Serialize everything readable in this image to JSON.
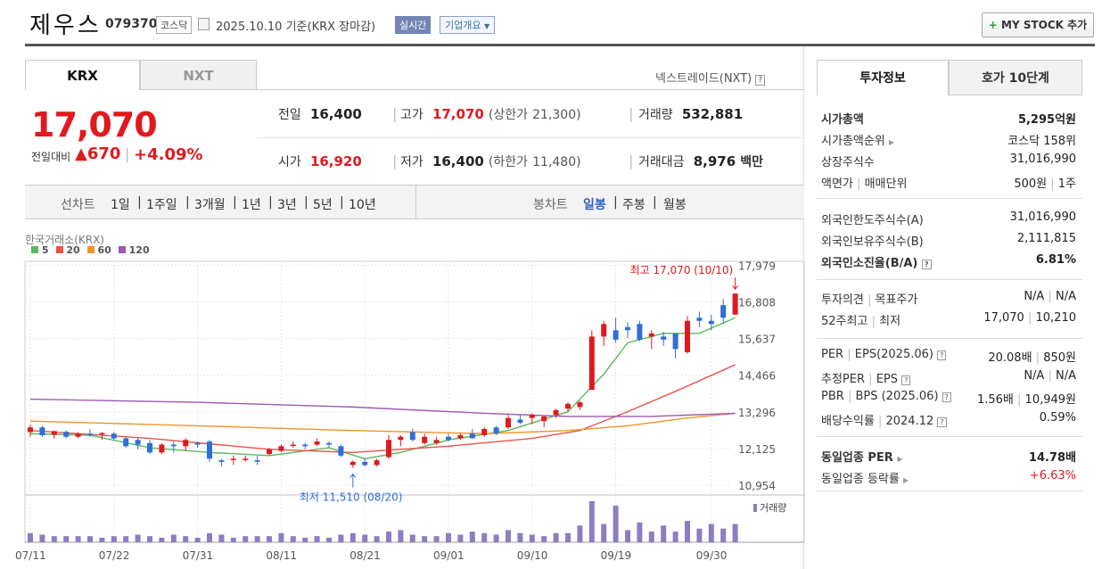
{
  "header": {
    "name": "제우스",
    "code": "079370",
    "market": "코스닥",
    "date": "2025.10.10",
    "basis": "기준(KRX 장마감)",
    "realtime": "실시간",
    "company_overview": "기업개요",
    "mystock": "MY STOCK 추가"
  },
  "tabs": {
    "krx": "KRX",
    "nxt": "NXT",
    "nxt_link": "넥스트레이드(NXT)"
  },
  "price": {
    "current": "17,070",
    "change_label": "전일대비",
    "change": "670",
    "change_pct": "+4.09%"
  },
  "quote": {
    "prev_label": "전일",
    "prev": "16,400",
    "high_label": "고가",
    "high": "17,070",
    "upper_label": "(상한가",
    "upper": "21,300)",
    "volume_label": "거래량",
    "volume": "532,881",
    "open_label": "시가",
    "open": "16,920",
    "low_label": "저가",
    "low": "16,400",
    "lower_label": "(하한가",
    "lower": "11,480)",
    "amount_label": "거래대금",
    "amount": "8,976",
    "amount_unit": "백만"
  },
  "periods": {
    "line_label": "선차트",
    "items": [
      "1일",
      "1주일",
      "3개월",
      "1년",
      "3년",
      "5년",
      "10년"
    ],
    "candle_label": "봉차트",
    "candle_items": [
      "일봉",
      "주봉",
      "월봉"
    ]
  },
  "chart_data": {
    "type": "candlestick",
    "source_label": "한국거래소(KRX)",
    "legend": [
      "5",
      "20",
      "60",
      "120"
    ],
    "legend_colors": [
      "#5cb85c",
      "#e8534a",
      "#f0932b",
      "#9b59b6"
    ],
    "y_ticks": [
      "17,979",
      "16,808",
      "15,637",
      "14,466",
      "13,296",
      "12,125",
      "10,954"
    ],
    "y_tick_values": [
      17979,
      16808,
      15637,
      14466,
      13296,
      12125,
      10954
    ],
    "ylim": [
      10700,
      18100
    ],
    "x_ticks": [
      "07/11",
      "07/22",
      "07/31",
      "08/11",
      "08/21",
      "09/01",
      "09/10",
      "09/19",
      "09/30"
    ],
    "x_tick_index": [
      0,
      7,
      14,
      21,
      28,
      35,
      42,
      49,
      57
    ],
    "max_annotation": "최고 17,070 (10/10)",
    "min_annotation": "최저 11,510 (08/20)",
    "max_index": 59,
    "min_index": 27,
    "volume_label": "거래량",
    "candles": [
      [
        12650,
        12900,
        12500,
        12800
      ],
      [
        12800,
        12850,
        12500,
        12550
      ],
      [
        12560,
        12700,
        12450,
        12680
      ],
      [
        12660,
        12700,
        12450,
        12500
      ],
      [
        12500,
        12650,
        12450,
        12600
      ],
      [
        12600,
        12750,
        12500,
        12550
      ],
      [
        12600,
        12650,
        12400,
        12620
      ],
      [
        12600,
        12650,
        12400,
        12450
      ],
      [
        12450,
        12500,
        12150,
        12200
      ],
      [
        12400,
        12450,
        12100,
        12250
      ],
      [
        12300,
        12400,
        11950,
        12000
      ],
      [
        12000,
        12300,
        11950,
        12250
      ],
      [
        12250,
        12350,
        12000,
        12200
      ],
      [
        12200,
        12450,
        12050,
        12400
      ],
      [
        12300,
        12350,
        12150,
        12250
      ],
      [
        12350,
        12400,
        11700,
        11800
      ],
      [
        11750,
        11800,
        11550,
        11700
      ],
      [
        11800,
        11900,
        11600,
        11800
      ],
      [
        11800,
        11900,
        11700,
        11800
      ],
      [
        11750,
        11900,
        11600,
        11700
      ],
      [
        11950,
        12150,
        11900,
        12100
      ],
      [
        12050,
        12250,
        12000,
        12200
      ],
      [
        12250,
        12350,
        12150,
        12250
      ],
      [
        12250,
        12300,
        12100,
        12200
      ],
      [
        12250,
        12450,
        12200,
        12350
      ],
      [
        12300,
        12350,
        12150,
        12250
      ],
      [
        12200,
        12250,
        11850,
        11900
      ],
      [
        11600,
        11750,
        11510,
        11700
      ],
      [
        11700,
        11800,
        11550,
        11600
      ],
      [
        11600,
        11800,
        11550,
        11750
      ],
      [
        11850,
        12550,
        11800,
        12400
      ],
      [
        12400,
        12550,
        12200,
        12500
      ],
      [
        12650,
        12750,
        12350,
        12400
      ],
      [
        12300,
        12600,
        12250,
        12500
      ],
      [
        12300,
        12500,
        12250,
        12400
      ],
      [
        12500,
        12600,
        12350,
        12400
      ],
      [
        12450,
        12600,
        12400,
        12550
      ],
      [
        12600,
        12750,
        12450,
        12450
      ],
      [
        12550,
        12800,
        12500,
        12750
      ],
      [
        12800,
        12850,
        12550,
        12600
      ],
      [
        12800,
        13200,
        12750,
        13100
      ],
      [
        13050,
        13200,
        12900,
        12950
      ],
      [
        13100,
        13250,
        12900,
        13200
      ],
      [
        13000,
        13150,
        12800,
        13150
      ],
      [
        13200,
        13400,
        13100,
        13350
      ],
      [
        13400,
        13600,
        13300,
        13550
      ],
      [
        13450,
        13650,
        13350,
        13600
      ],
      [
        14000,
        15900,
        14000,
        15700
      ],
      [
        15700,
        16200,
        15400,
        16100
      ],
      [
        15900,
        16300,
        15500,
        15600
      ],
      [
        16000,
        16150,
        15650,
        15900
      ],
      [
        16100,
        16200,
        15550,
        15600
      ],
      [
        15700,
        15900,
        15300,
        15800
      ],
      [
        15700,
        15850,
        15400,
        15600
      ],
      [
        15800,
        15800,
        15000,
        15300
      ],
      [
        15200,
        16350,
        15150,
        16200
      ],
      [
        16300,
        16500,
        16000,
        16200
      ],
      [
        16200,
        16400,
        15900,
        16100
      ],
      [
        16700,
        16900,
        16100,
        16300
      ],
      [
        16400,
        17070,
        16400,
        17070
      ]
    ],
    "volumes": [
      6,
      5,
      4,
      4,
      4,
      4,
      3,
      4,
      4,
      5,
      4,
      3,
      5,
      4,
      3,
      6,
      5,
      3,
      4,
      4,
      4,
      6,
      4,
      3,
      4,
      3,
      5,
      6,
      5,
      4,
      7,
      8,
      5,
      4,
      4,
      6,
      5,
      7,
      6,
      5,
      8,
      6,
      5,
      4,
      6,
      6,
      11,
      27,
      12,
      24,
      8,
      13,
      7,
      11,
      7,
      14,
      9,
      12,
      9,
      12
    ],
    "ma": {
      "ma5": [
        [
          0,
          12600
        ],
        [
          5,
          12550
        ],
        [
          10,
          12150
        ],
        [
          15,
          12000
        ],
        [
          20,
          11900
        ],
        [
          25,
          12150
        ],
        [
          28,
          11800
        ],
        [
          31,
          12000
        ],
        [
          35,
          12400
        ],
        [
          40,
          12700
        ],
        [
          45,
          13300
        ],
        [
          48,
          14500
        ],
        [
          50,
          15500
        ],
        [
          53,
          15800
        ],
        [
          56,
          15800
        ],
        [
          59,
          16300
        ]
      ],
      "ma20": [
        [
          0,
          12700
        ],
        [
          10,
          12450
        ],
        [
          20,
          12100
        ],
        [
          27,
          12000
        ],
        [
          35,
          12200
        ],
        [
          42,
          12450
        ],
        [
          46,
          12700
        ],
        [
          50,
          13300
        ],
        [
          54,
          13950
        ],
        [
          59,
          14800
        ]
      ],
      "ma60": [
        [
          0,
          13000
        ],
        [
          14,
          12850
        ],
        [
          27,
          12700
        ],
        [
          38,
          12600
        ],
        [
          45,
          12700
        ],
        [
          50,
          12850
        ],
        [
          55,
          13100
        ],
        [
          59,
          13250
        ]
      ],
      "ma120": [
        [
          0,
          13700
        ],
        [
          14,
          13600
        ],
        [
          27,
          13450
        ],
        [
          38,
          13250
        ],
        [
          45,
          13150
        ],
        [
          52,
          13150
        ],
        [
          59,
          13250
        ]
      ]
    }
  },
  "sidepanel": {
    "tab_invest": "투자정보",
    "tab_hoga": "호가 10단계",
    "market_cap_label": "시가총액",
    "market_cap": "5,295억원",
    "rank_label": "시가총액순위",
    "rank": "코스닥 158위",
    "shares_label": "상장주식수",
    "shares": "31,016,990",
    "face_label": "액면가",
    "unit_label": "매매단위",
    "face": "500원",
    "unit": "1주",
    "foreign_limit_label": "외국인한도주식수(A)",
    "foreign_limit": "31,016,990",
    "foreign_hold_label": "외국인보유주식수(B)",
    "foreign_hold": "2,111,815",
    "foreign_ratio_label": "외국인소진율(B/A)",
    "foreign_ratio": "6.81%",
    "opinion_label": "투자의견",
    "target_label": "목표주가",
    "opinion": "N/A",
    "target": "N/A",
    "w52_high_label": "52주최고",
    "w52_low_label": "최저",
    "w52_high": "17,070",
    "w52_low": "10,210",
    "per_label": "PER",
    "eps_label": "EPS(2025.06)",
    "per": "20.08배",
    "eps": "850원",
    "eper_label": "추정PER",
    "eeps_label": "EPS",
    "eper": "N/A",
    "eeps": "N/A",
    "pbr_label": "PBR",
    "bps_label": "BPS (2025.06)",
    "pbr": "1.56배",
    "bps": "10,949원",
    "div_label": "배당수익률",
    "div_date": "2024.12",
    "div": "0.59%",
    "peer_per_label": "동일업종 PER",
    "peer_per": "14.78배",
    "peer_chg_label": "동일업종 등락률",
    "peer_chg": "+6.63%"
  }
}
